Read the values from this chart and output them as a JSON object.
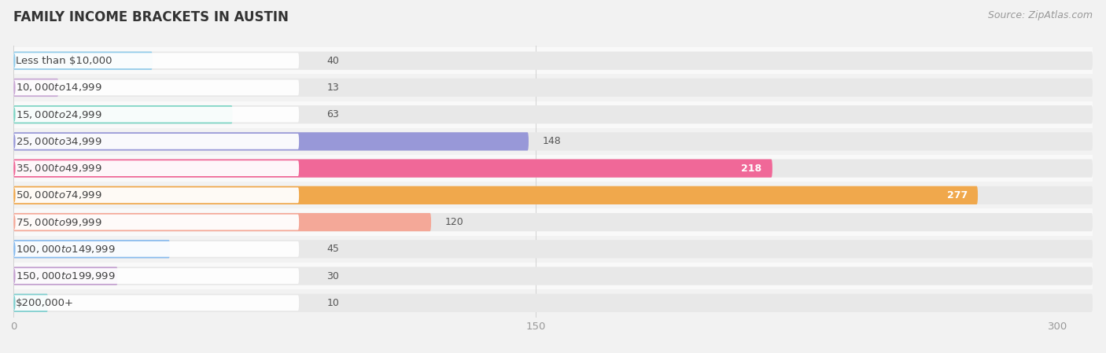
{
  "title": "FAMILY INCOME BRACKETS IN AUSTIN",
  "source": "Source: ZipAtlas.com",
  "categories": [
    "Less than $10,000",
    "$10,000 to $14,999",
    "$15,000 to $24,999",
    "$25,000 to $34,999",
    "$35,000 to $49,999",
    "$50,000 to $74,999",
    "$75,000 to $99,999",
    "$100,000 to $149,999",
    "$150,000 to $199,999",
    "$200,000+"
  ],
  "values": [
    40,
    13,
    63,
    148,
    218,
    277,
    120,
    45,
    30,
    10
  ],
  "bar_colors": [
    "#92CCEA",
    "#C9A8D4",
    "#7DD4C4",
    "#9898D8",
    "#F06898",
    "#F0A84C",
    "#F4A898",
    "#88BBEE",
    "#C4A0D0",
    "#7ECECE"
  ],
  "background_color": "#f2f2f2",
  "bar_background_color": "#e8e8e8",
  "row_bg_color": "#f9f9f9",
  "label_bg_color": "#ffffff",
  "xlim_max": 310,
  "xticks": [
    0,
    150,
    300
  ],
  "title_fontsize": 12,
  "label_fontsize": 9.5,
  "value_fontsize": 9,
  "source_fontsize": 9,
  "value_threshold_inside": 200
}
